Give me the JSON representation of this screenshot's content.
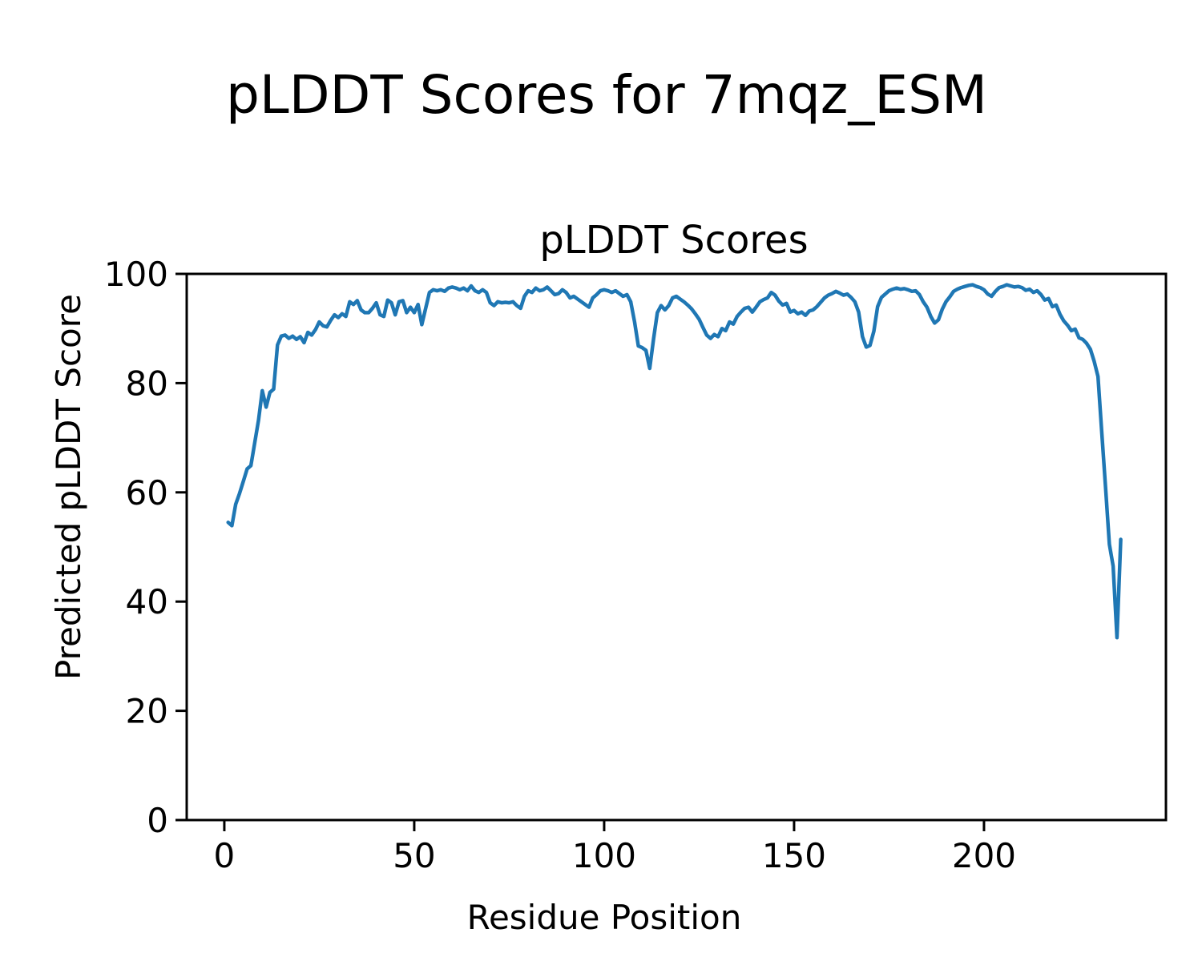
{
  "figure": {
    "suptitle": "pLDDT Scores for 7mqz_ESM",
    "background": "#ffffff"
  },
  "chart_data": {
    "type": "line",
    "title": "pLDDT Scores",
    "suptitle": "pLDDT Scores for 7mqz_ESM",
    "xlabel": "Residue Position",
    "ylabel": "Predicted pLDDT Score",
    "legend": null,
    "grid": false,
    "line_color": "#1f77b4",
    "axis_color": "#000000",
    "xlim": [
      -9.9,
      247.9
    ],
    "ylim": [
      0,
      100
    ],
    "xticks": [
      0,
      50,
      100,
      150,
      200
    ],
    "yticks": [
      0,
      20,
      40,
      60,
      80,
      100
    ],
    "x_start": 1,
    "y": [
      54.5,
      53.9,
      57.8,
      59.8,
      62.0,
      64.3,
      64.9,
      69.0,
      73.2,
      78.6,
      75.6,
      78.3,
      78.9,
      87.0,
      88.6,
      88.8,
      88.2,
      88.6,
      88.0,
      88.5,
      87.4,
      89.3,
      88.8,
      89.8,
      91.2,
      90.5,
      90.3,
      91.5,
      92.5,
      92.0,
      92.7,
      92.2,
      94.9,
      94.4,
      95.1,
      93.4,
      92.9,
      92.9,
      93.7,
      94.7,
      92.5,
      92.2,
      95.2,
      94.7,
      92.5,
      94.9,
      95.1,
      92.9,
      93.9,
      92.9,
      94.4,
      90.7,
      93.7,
      96.6,
      97.1,
      96.9,
      97.1,
      96.8,
      97.4,
      97.6,
      97.4,
      97.1,
      97.4,
      96.9,
      97.8,
      96.9,
      96.6,
      97.1,
      96.6,
      94.7,
      94.2,
      94.9,
      94.7,
      94.8,
      94.7,
      94.9,
      94.2,
      93.7,
      95.9,
      96.9,
      96.6,
      97.4,
      96.9,
      97.1,
      97.6,
      96.9,
      96.2,
      96.4,
      97.1,
      96.6,
      95.6,
      95.9,
      95.4,
      94.9,
      94.4,
      93.9,
      95.6,
      96.2,
      96.9,
      97.1,
      96.9,
      96.6,
      96.9,
      96.4,
      95.9,
      96.2,
      94.9,
      91.2,
      86.8,
      86.5,
      86.0,
      82.7,
      88.1,
      92.9,
      94.2,
      93.4,
      94.2,
      95.6,
      95.9,
      95.4,
      94.9,
      94.3,
      93.6,
      92.7,
      91.7,
      90.2,
      88.8,
      88.2,
      88.9,
      88.5,
      90.0,
      89.6,
      91.2,
      90.8,
      92.2,
      93.0,
      93.7,
      93.9,
      93.0,
      93.9,
      94.9,
      95.3,
      95.6,
      96.6,
      96.1,
      95.0,
      94.3,
      94.6,
      93.0,
      93.3,
      92.7,
      93.0,
      92.4,
      93.2,
      93.4,
      94.0,
      94.8,
      95.6,
      96.1,
      96.4,
      96.8,
      96.5,
      96.1,
      96.3,
      95.7,
      94.9,
      93.0,
      88.5,
      86.6,
      86.9,
      89.5,
      94.0,
      95.7,
      96.3,
      96.9,
      97.2,
      97.4,
      97.2,
      97.3,
      97.1,
      96.8,
      96.9,
      96.2,
      94.9,
      93.9,
      92.2,
      91.0,
      91.6,
      93.5,
      94.9,
      95.8,
      96.8,
      97.2,
      97.5,
      97.7,
      97.9,
      98.0,
      97.7,
      97.5,
      97.1,
      96.3,
      95.9,
      96.8,
      97.5,
      97.7,
      98.0,
      97.8,
      97.6,
      97.7,
      97.5,
      97.0,
      97.2,
      96.6,
      96.9,
      96.2,
      95.2,
      95.5,
      94.0,
      94.3,
      92.6,
      91.4,
      90.6,
      89.6,
      89.9,
      88.3,
      88.0,
      87.3,
      86.2,
      84.0,
      81.2,
      71.0,
      61.0,
      50.5,
      46.5,
      33.4,
      51.4
    ]
  }
}
